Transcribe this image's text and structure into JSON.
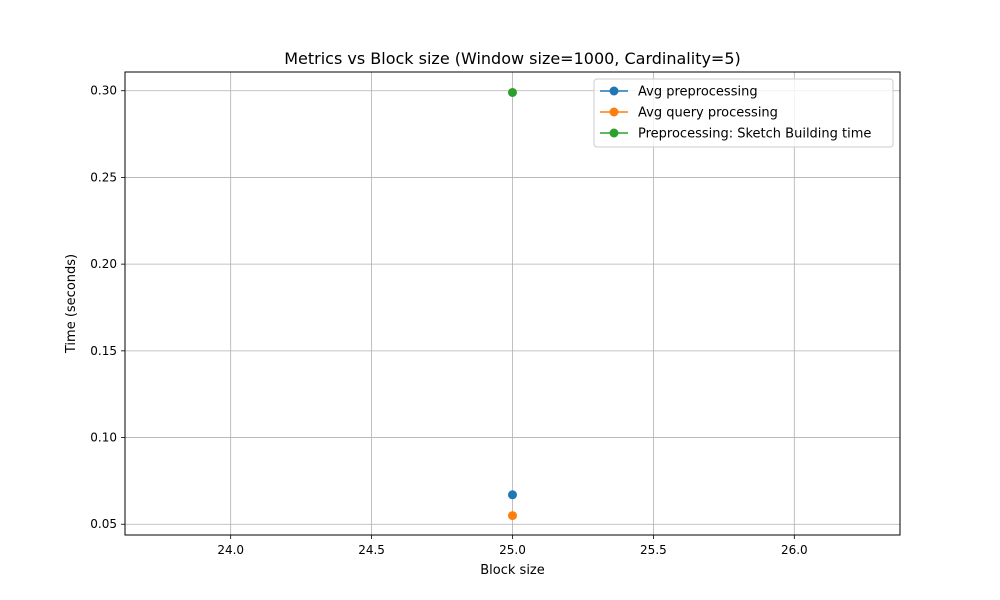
{
  "chart_data": {
    "type": "line",
    "title": "Metrics vs Block size (Window size=1000, Cardinality=5)",
    "xlabel": "Block size",
    "ylabel": "Time (seconds)",
    "xlim": [
      23.625,
      26.375
    ],
    "ylim": [
      0.0438,
      0.3108
    ],
    "xticks": [
      24.0,
      24.5,
      25.0,
      25.5,
      26.0
    ],
    "xtick_labels": [
      "24.0",
      "24.5",
      "25.0",
      "25.5",
      "26.0"
    ],
    "yticks": [
      0.05,
      0.1,
      0.15,
      0.2,
      0.25,
      0.3
    ],
    "ytick_labels": [
      "0.05",
      "0.10",
      "0.15",
      "0.20",
      "0.25",
      "0.30"
    ],
    "grid": true,
    "legend_position": "top-right",
    "series": [
      {
        "name": "Avg preprocessing",
        "color": "#1f77b4",
        "x": [
          25.0
        ],
        "y": [
          0.067
        ]
      },
      {
        "name": "Avg query processing",
        "color": "#ff7f0e",
        "x": [
          25.0
        ],
        "y": [
          0.055
        ]
      },
      {
        "name": "Preprocessing: Sketch Building time",
        "color": "#2ca02c",
        "x": [
          25.0
        ],
        "y": [
          0.299
        ]
      }
    ]
  }
}
